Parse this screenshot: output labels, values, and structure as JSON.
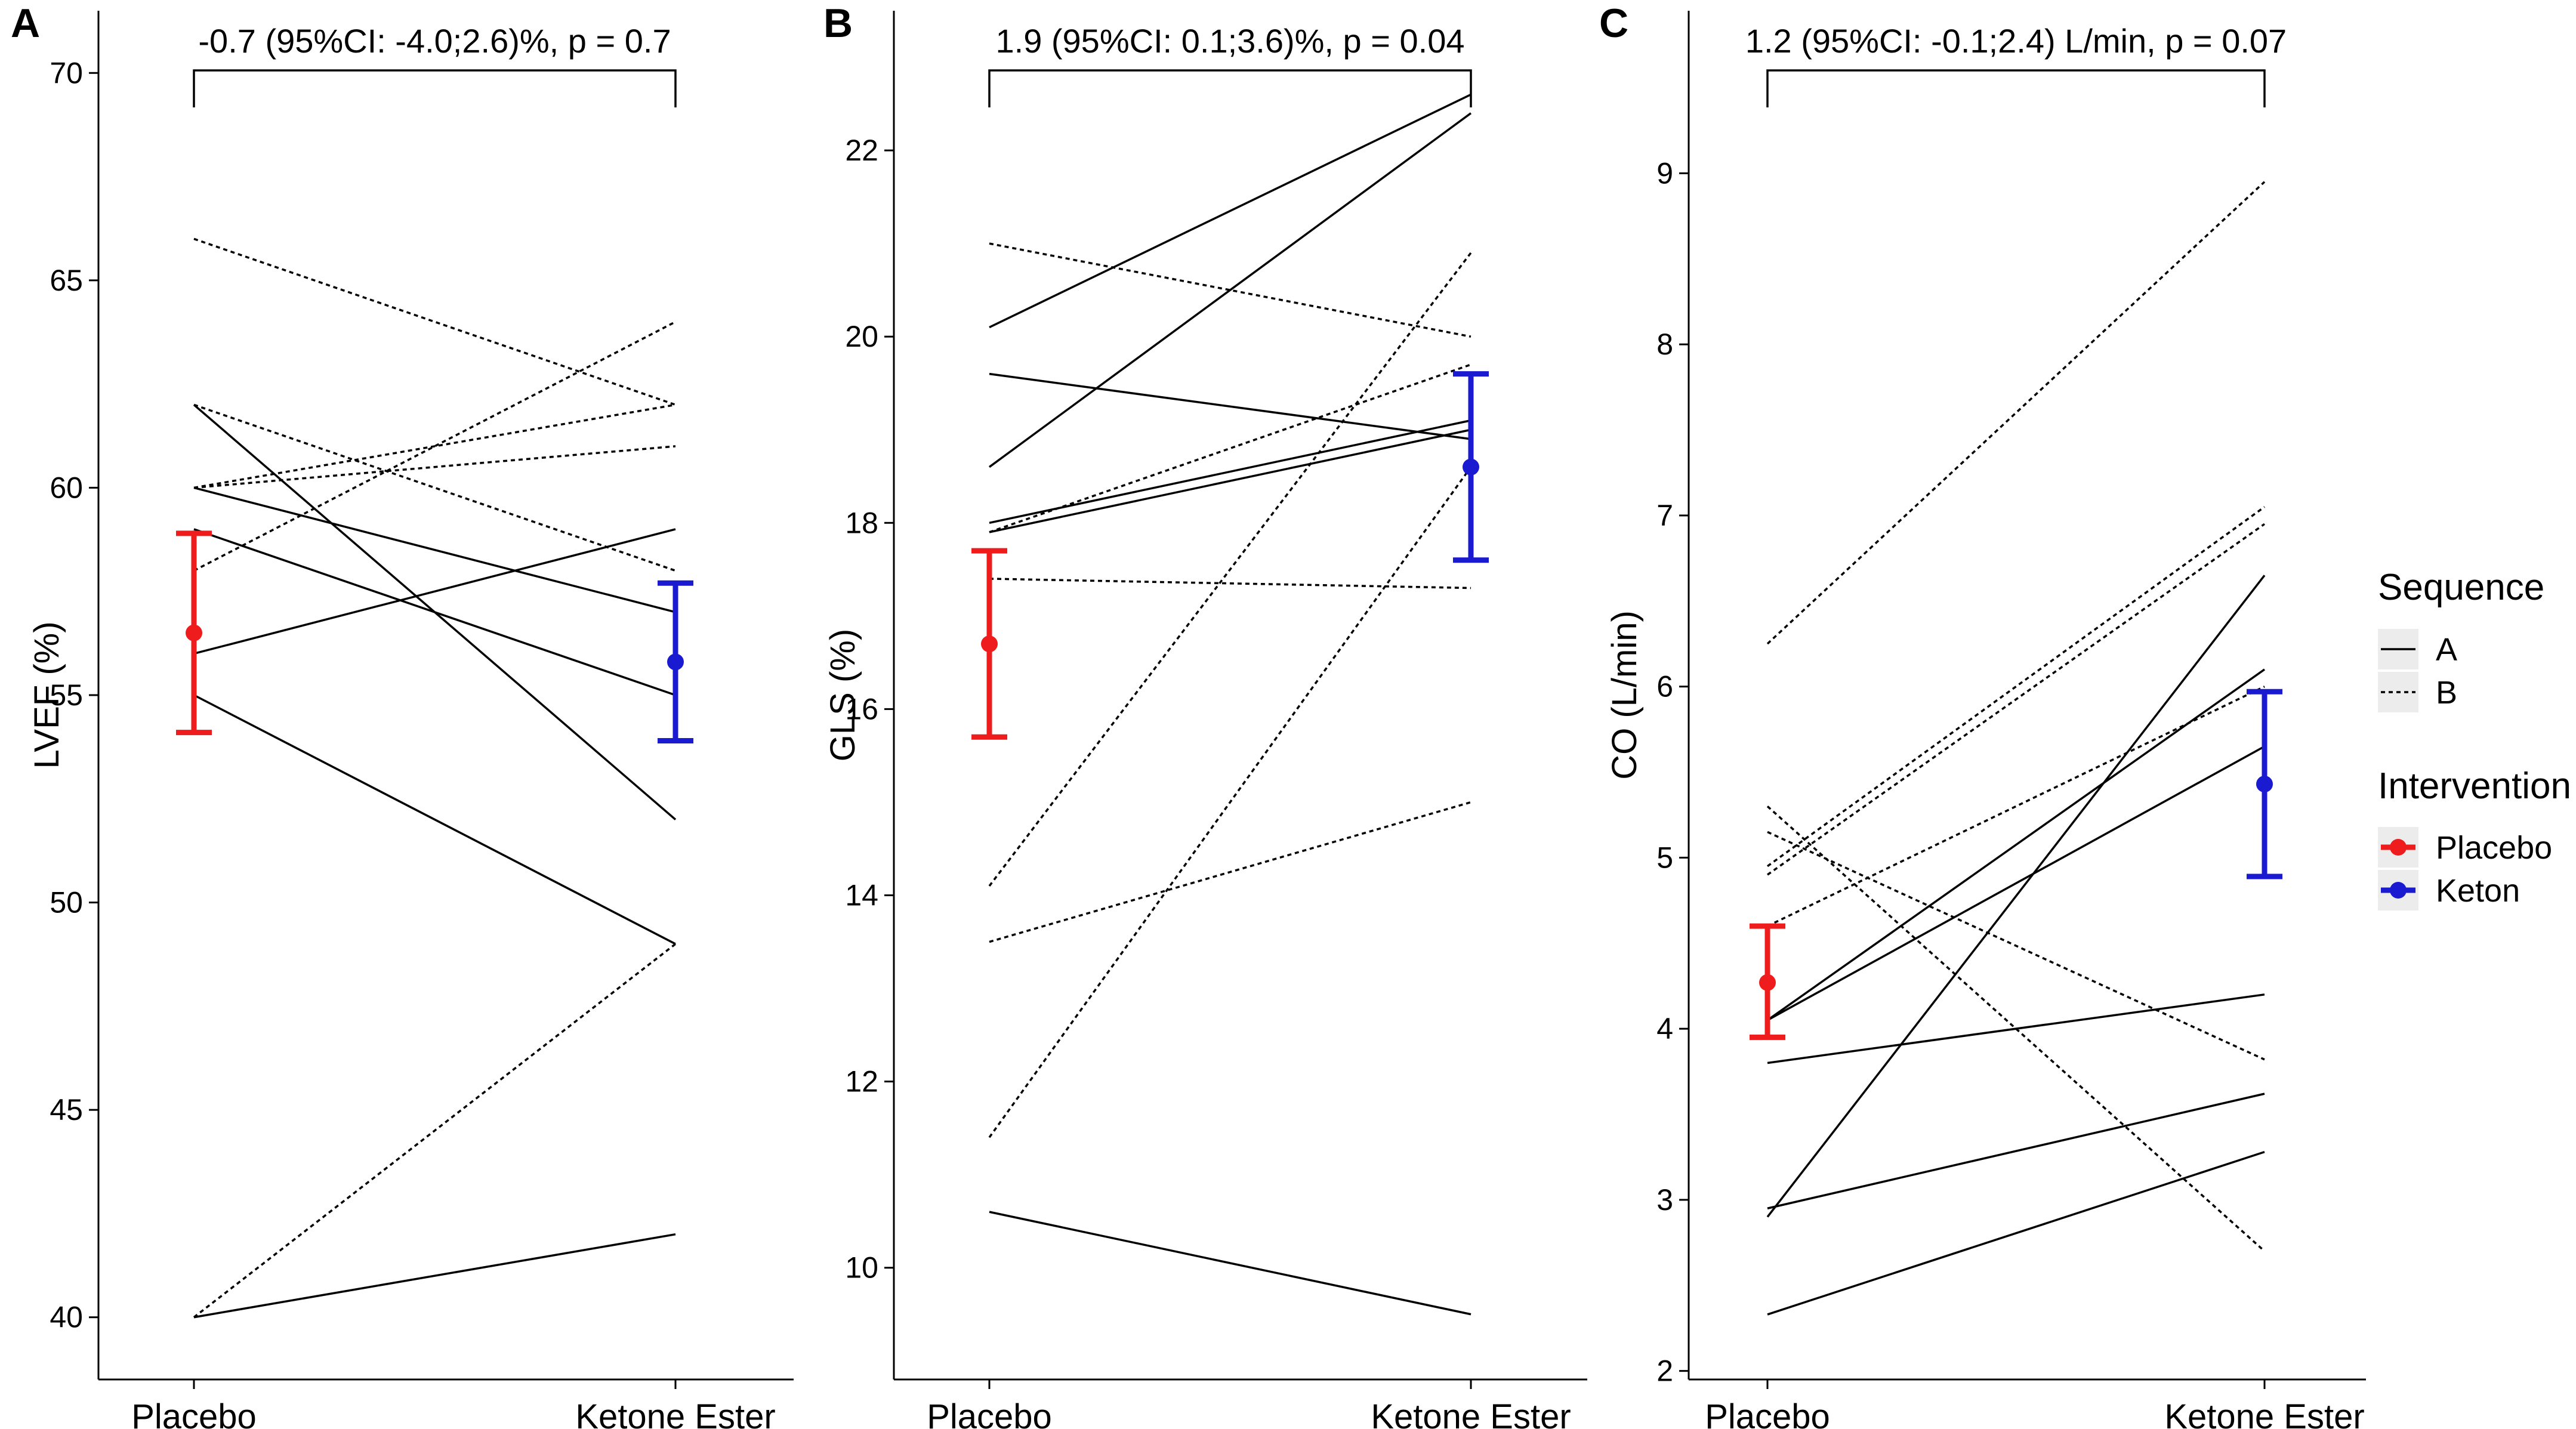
{
  "chart_data": [
    {
      "type": "line",
      "panel_label": "A",
      "ylabel": "LVEF (%)",
      "ylim": [
        38.5,
        71.5
      ],
      "yticks": [
        40,
        45,
        50,
        55,
        60,
        65,
        70
      ],
      "categories": [
        "Placebo",
        "Ketone Ester"
      ],
      "annotation": "-0.7 (95%CI: -4.0;2.6)%, p = 0.7",
      "series": [
        {
          "sequence": "A",
          "values": [
            62,
            52
          ]
        },
        {
          "sequence": "A",
          "values": [
            60,
            57
          ]
        },
        {
          "sequence": "A",
          "values": [
            59,
            55
          ]
        },
        {
          "sequence": "A",
          "values": [
            56,
            59
          ]
        },
        {
          "sequence": "A",
          "values": [
            55,
            49
          ]
        },
        {
          "sequence": "A",
          "values": [
            40,
            42
          ]
        },
        {
          "sequence": "B",
          "values": [
            66,
            62
          ]
        },
        {
          "sequence": "B",
          "values": [
            62,
            58
          ]
        },
        {
          "sequence": "B",
          "values": [
            60,
            62
          ]
        },
        {
          "sequence": "B",
          "values": [
            60,
            61
          ]
        },
        {
          "sequence": "B",
          "values": [
            58,
            64
          ]
        },
        {
          "sequence": "B",
          "values": [
            40,
            49
          ]
        }
      ],
      "summary": [
        {
          "group": "Placebo",
          "mean": 56.5,
          "lower": 54.1,
          "upper": 58.9
        },
        {
          "group": "Keton",
          "mean": 55.8,
          "lower": 53.9,
          "upper": 57.7
        }
      ]
    },
    {
      "type": "line",
      "panel_label": "B",
      "ylabel": "GLS (%)",
      "ylim": [
        8.8,
        23.5
      ],
      "yticks": [
        10,
        12,
        14,
        16,
        18,
        20,
        22
      ],
      "categories": [
        "Placebo",
        "Ketone Ester"
      ],
      "annotation": "1.9 (95%CI: 0.1;3.6)%, p = 0.04",
      "series": [
        {
          "sequence": "A",
          "values": [
            20.1,
            22.6
          ]
        },
        {
          "sequence": "A",
          "values": [
            18.6,
            22.4
          ]
        },
        {
          "sequence": "A",
          "values": [
            19.6,
            18.9
          ]
        },
        {
          "sequence": "A",
          "values": [
            18.0,
            19.1
          ]
        },
        {
          "sequence": "A",
          "values": [
            17.9,
            19.0
          ]
        },
        {
          "sequence": "A",
          "values": [
            10.6,
            9.5
          ]
        },
        {
          "sequence": "B",
          "values": [
            21.0,
            20.0
          ]
        },
        {
          "sequence": "B",
          "values": [
            17.9,
            19.7
          ]
        },
        {
          "sequence": "B",
          "values": [
            17.4,
            17.3
          ]
        },
        {
          "sequence": "B",
          "values": [
            14.1,
            20.9
          ]
        },
        {
          "sequence": "B",
          "values": [
            11.4,
            18.6
          ]
        },
        {
          "sequence": "B",
          "values": [
            13.5,
            15.0
          ]
        }
      ],
      "summary": [
        {
          "group": "Placebo",
          "mean": 16.7,
          "lower": 15.7,
          "upper": 17.7
        },
        {
          "group": "Keton",
          "mean": 18.6,
          "lower": 17.6,
          "upper": 19.6
        }
      ]
    },
    {
      "type": "line",
      "panel_label": "C",
      "ylabel": "CO (L/min)",
      "ylim": [
        1.95,
        9.95
      ],
      "yticks": [
        2,
        3,
        4,
        5,
        6,
        7,
        8,
        9
      ],
      "categories": [
        "Placebo",
        "Ketone Ester"
      ],
      "annotation": "1.2 (95%CI: -0.1;2.4) L/min, p = 0.07",
      "series": [
        {
          "sequence": "A",
          "values": [
            2.9,
            6.65
          ]
        },
        {
          "sequence": "A",
          "values": [
            4.05,
            6.1
          ]
        },
        {
          "sequence": "A",
          "values": [
            4.05,
            5.65
          ]
        },
        {
          "sequence": "A",
          "values": [
            3.8,
            4.2
          ]
        },
        {
          "sequence": "A",
          "values": [
            2.95,
            3.62
          ]
        },
        {
          "sequence": "A",
          "values": [
            2.33,
            3.28
          ]
        },
        {
          "sequence": "B",
          "values": [
            6.25,
            8.95
          ]
        },
        {
          "sequence": "B",
          "values": [
            4.95,
            7.05
          ]
        },
        {
          "sequence": "B",
          "values": [
            4.9,
            6.95
          ]
        },
        {
          "sequence": "B",
          "values": [
            4.6,
            6.0
          ]
        },
        {
          "sequence": "B",
          "values": [
            5.3,
            2.7
          ]
        },
        {
          "sequence": "B",
          "values": [
            5.15,
            3.82
          ]
        }
      ],
      "summary": [
        {
          "group": "Placebo",
          "mean": 4.27,
          "lower": 3.95,
          "upper": 4.6
        },
        {
          "group": "Keton",
          "mean": 5.43,
          "lower": 4.89,
          "upper": 5.97
        }
      ]
    }
  ],
  "legend": {
    "sequence_title": "Sequence",
    "sequence_items": [
      {
        "label": "A",
        "dash": "solid"
      },
      {
        "label": "B",
        "dash": "dotted"
      }
    ],
    "intervention_title": "Intervention",
    "intervention_items": [
      {
        "label": "Placebo",
        "color": "#ee1c1c"
      },
      {
        "label": "Keton",
        "color": "#1a1ad0"
      }
    ]
  },
  "colors": {
    "placebo": "#ee1c1c",
    "keton": "#1a1ad0",
    "line": "#000000"
  }
}
